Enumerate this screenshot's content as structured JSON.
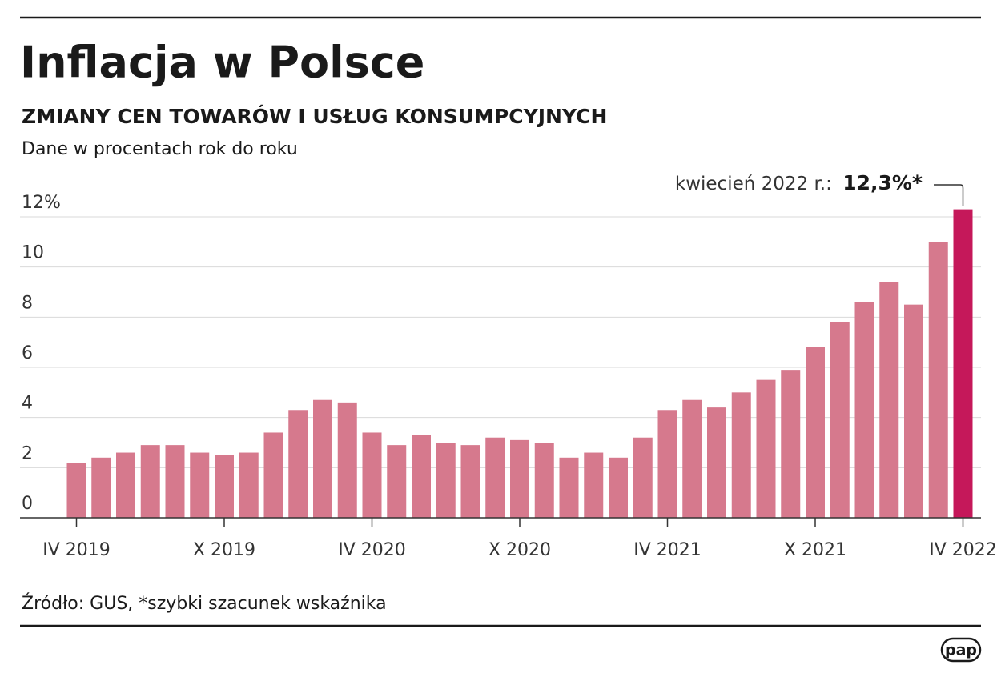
{
  "chart_data": {
    "type": "bar",
    "title": "Inflacja w Polsce",
    "subtitle": "ZMIANY CEN TOWARÓW I USŁUG KONSUMPCYJNYCH",
    "note": "Dane w procentach rok do roku",
    "source": "Źródło: GUS, *szybki szacunek wskaźnika",
    "logo": "pap",
    "annotation": "kwiecień 2022 r.:",
    "categories": [
      "IV 2019",
      null,
      null,
      null,
      null,
      null,
      "X 2019",
      null,
      null,
      null,
      null,
      null,
      "IV 2020",
      null,
      null,
      null,
      null,
      null,
      "X 2020",
      null,
      null,
      null,
      null,
      null,
      "IV 2021",
      null,
      null,
      null,
      null,
      null,
      "X 2021",
      null,
      null,
      null,
      null,
      null,
      "IV 2022"
    ],
    "values": [
      2.2,
      2.4,
      2.6,
      2.9,
      2.9,
      2.6,
      2.5,
      2.6,
      3.4,
      4.3,
      4.7,
      4.6,
      3.4,
      2.9,
      3.3,
      3.0,
      2.9,
      3.2,
      3.1,
      3.0,
      2.4,
      2.6,
      2.4,
      3.2,
      4.3,
      4.7,
      4.4,
      5.0,
      5.5,
      5.9,
      6.8,
      7.8,
      8.6,
      9.4,
      8.5,
      11.0,
      12.3
    ],
    "value_labels": [
      null,
      null,
      null,
      null,
      null,
      null,
      null,
      null,
      null,
      null,
      null,
      null,
      null,
      null,
      null,
      null,
      null,
      null,
      null,
      null,
      null,
      null,
      null,
      null,
      null,
      null,
      null,
      null,
      null,
      null,
      null,
      null,
      null,
      null,
      null,
      null,
      "12,3%*"
    ],
    "color": "#d6798d",
    "highlight_color": "#c5185a",
    "ylim": [
      0,
      12
    ],
    "yticks": [
      0,
      2,
      4,
      6,
      8,
      10,
      {
        "value": 12,
        "label": "12%"
      }
    ],
    "grid": true
  }
}
